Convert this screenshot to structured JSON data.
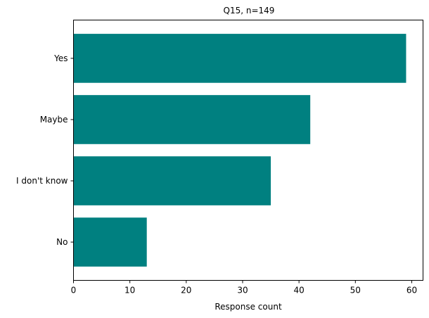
{
  "chart_data": {
    "type": "bar",
    "orientation": "horizontal",
    "title": "Q15, n=149",
    "xlabel": "Response count",
    "ylabel": "",
    "categories": [
      "Yes",
      "Maybe",
      "I don't know",
      "No"
    ],
    "values": [
      59,
      42,
      35,
      13
    ],
    "xlim": [
      0,
      62
    ],
    "xticks": [
      0,
      10,
      20,
      30,
      40,
      50,
      60
    ],
    "bar_color": "#008080",
    "grid": false,
    "legend": "none"
  }
}
